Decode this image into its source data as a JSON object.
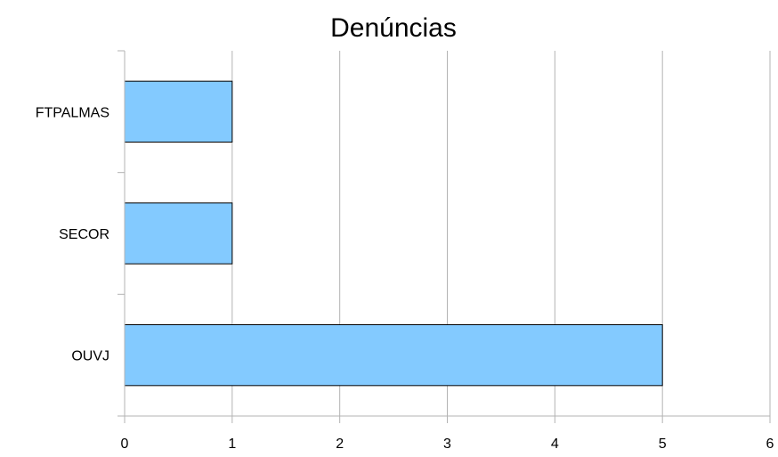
{
  "chart_data": {
    "type": "bar",
    "orientation": "horizontal",
    "title": "Denúncias",
    "categories": [
      "FTPALMAS",
      "SECOR",
      "OUVJ"
    ],
    "values": [
      1,
      1,
      5
    ],
    "xlim": [
      0,
      6
    ],
    "x_ticks": [
      "0",
      "1",
      "2",
      "3",
      "4",
      "5",
      "6"
    ],
    "grid": "vertical",
    "legend": "none",
    "bar_color": "#83caff",
    "bar_edge_color": "#000000",
    "grid_color": "#b3b3b3"
  }
}
